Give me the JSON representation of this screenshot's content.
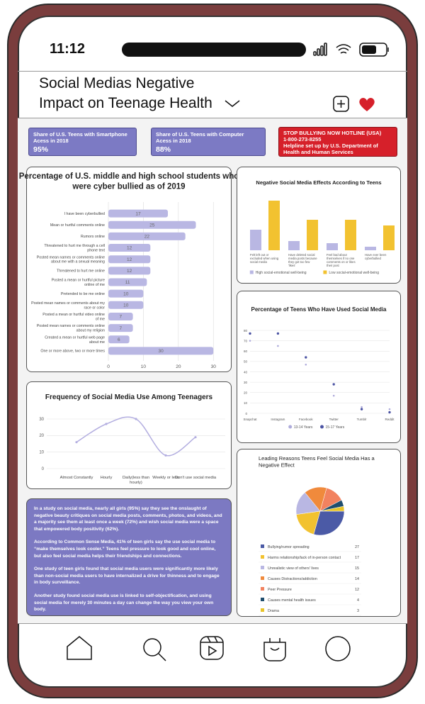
{
  "status_bar": {
    "time": "11:12"
  },
  "header": {
    "title_lines": [
      "Social Medias Negative",
      "Impact on Teenage Health"
    ]
  },
  "stats": [
    {
      "label": "Share of U.S. Teens with Smartphone Acess in 2018",
      "value": "95%"
    },
    {
      "label": "Share of U.S. Teens with Computer Acess in 2018",
      "value": "88%"
    }
  ],
  "hotline": {
    "title": "STOP BULLYING NOW HOTLINE (USA)",
    "phone": "1-800-273-8255",
    "note": "Helpline set up by U.S. Department of Health and Human Services"
  },
  "chart_data": [
    {
      "type": "bar",
      "orientation": "horizontal",
      "title": "Percentage of U.S. middle and high school students who were cyber bullied as of 2019",
      "categories": [
        "I have been cyberbullied",
        "Mean or hurtful comments online",
        "Rumors online",
        "Threatened to hurt me through a cell phone text",
        "Posted mean names or comments online about me with a sexual meaning",
        "Threatened to hurt me online",
        "Posted a mean or hurtful picture online of me",
        "Pretended to be me online",
        "Posted mean names or comments about my race or color",
        "Posted a mean or hurtful video online of me",
        "Posted mean names or comments online about my religion",
        "Created a mean or hurtful web page about me",
        "One or more above, two or more times"
      ],
      "values": [
        17,
        25,
        22,
        12,
        12,
        12,
        11,
        10,
        10,
        7,
        7,
        6,
        30
      ],
      "color": "#b9b7e3",
      "xlim": [
        0,
        34
      ],
      "xticks": [
        0,
        10,
        20,
        30
      ],
      "grid": true
    },
    {
      "type": "bar",
      "title": "Negative Social Media Effects According to Teens",
      "categories": [
        "Felt left out or excluded when using social media",
        "Have deleted social media posts because they got too few 'likes'",
        "Feel bad about themselves if no one comments on or likes their post",
        "Have ever been cyberbullied"
      ],
      "series": [
        {
          "name": "High social-emotional well-being",
          "color": "#b9b7e3",
          "values": [
            29,
            13,
            10,
            5
          ]
        },
        {
          "name": "Low social-emotional well-being",
          "color": "#f2c230",
          "values": [
            70,
            43,
            43,
            35
          ]
        }
      ],
      "ylim": [
        0,
        80
      ]
    },
    {
      "type": "dot",
      "title": "Percentage of Teens Who Have Used Social Media",
      "categories": [
        "Snapchat",
        "Instagram",
        "Facebook",
        "Twitter",
        "Tumblr",
        "Reddit"
      ],
      "series": [
        {
          "name": "13-14 Years",
          "color": "#aeabdb",
          "values": [
            70,
            65,
            47,
            17,
            6,
            4
          ]
        },
        {
          "name": "15-17 Years",
          "color": "#4b53a3",
          "values": [
            77,
            77,
            54,
            28,
            4,
            1
          ]
        }
      ],
      "ylim": [
        0,
        80
      ],
      "yticks": [
        0,
        10,
        20,
        30,
        40,
        50,
        60,
        70,
        80
      ],
      "grid": true
    },
    {
      "type": "line",
      "smooth": true,
      "title": "Frequency of Social Media Use Among Teenagers",
      "categories": [
        "Almost Constantly",
        "Hourly",
        "Daily(less than hourly)",
        "Weekly or less",
        "Don't use social media"
      ],
      "values": [
        16,
        27,
        30,
        8,
        19
      ],
      "color": "#b3aee0",
      "ylim": [
        0,
        30
      ],
      "yticks": [
        0,
        10,
        20,
        30
      ],
      "grid": true
    },
    {
      "type": "pie",
      "title": "Leading Reasons Teens Feel Social Media Has a Negative Effect",
      "categories": [
        "Bullying/rumor spreading",
        "Harms relationship/lack of in-person contact",
        "Unrealistic view of others' lives",
        "Causes Distractions/addiction",
        "Peer Pressure",
        "Causes mental health issues",
        "Drama"
      ],
      "values": [
        27,
        17,
        15,
        14,
        12,
        4,
        3
      ],
      "colors": [
        "#4b5aa6",
        "#f2c230",
        "#b9b7e3",
        "#f08a3c",
        "#f2825f",
        "#1f4e6e",
        "#e8c42a"
      ]
    }
  ],
  "text_panel": {
    "paragraphs": [
      "In a study on social media, nearly all girls (95%) say they see the onslaught of negative beauty critiques on social media posts, comments, photos, and videos, and a majority see them at least once a week (72%) and wish social media were a space that empowered body positivity (62%).",
      "According to Common Sense Media, 41% of teen girls say the use social media to “make themselves look cooler.” Teens feel pressure to look good and cool online, but also feel social media helps their friendships and connections.",
      "One study of teen girls found that social media users were significantly more likely than non-social media users to have internalized a drive for thinness and to engage in body surveillance.",
      "Another study found social media use is linked to self-objectification, and using social media for merely 30 minutes a day can change the way you view your own body."
    ]
  }
}
